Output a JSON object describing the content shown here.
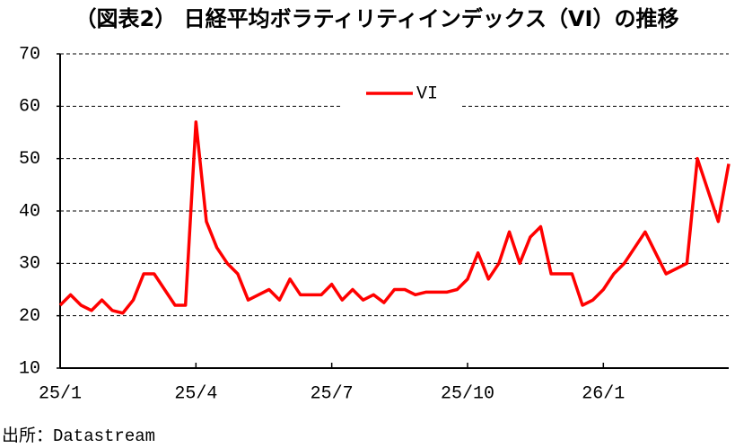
{
  "chart_data": {
    "type": "line",
    "title": "（図表2） 日経平均ボラティリティインデックス（VI）の推移",
    "source": "出所：Datastream",
    "categories": [
      "25/1",
      null,
      null,
      null,
      null,
      null,
      null,
      null,
      null,
      null,
      null,
      null,
      null,
      "25/4",
      null,
      null,
      null,
      null,
      null,
      null,
      null,
      null,
      null,
      null,
      null,
      null,
      "25/7",
      null,
      null,
      null,
      null,
      null,
      null,
      null,
      null,
      null,
      null,
      null,
      null,
      "25/10",
      null,
      null,
      null,
      null,
      null,
      null,
      null,
      null,
      null,
      null,
      null,
      null,
      "26/1",
      null,
      null,
      null,
      null,
      null,
      null,
      null,
      null,
      null,
      null,
      null,
      null
    ],
    "series": [
      {
        "name": "VI",
        "color": "#ff0000",
        "values": [
          22,
          24,
          22,
          21,
          23,
          21,
          20.5,
          23,
          28,
          28,
          25,
          22,
          22,
          57,
          38,
          33,
          30,
          28,
          23,
          24,
          25,
          23,
          27,
          24,
          24,
          24,
          26,
          23,
          25,
          23,
          24,
          22.5,
          25,
          25,
          24,
          24.5,
          24.5,
          24.5,
          25,
          27,
          32,
          27,
          30,
          36,
          30,
          35,
          37,
          28,
          28,
          28,
          22,
          23,
          25,
          28,
          30,
          33,
          36,
          32,
          28,
          29,
          30,
          50,
          44,
          38,
          49
        ]
      }
    ],
    "ylim": [
      10,
      70
    ],
    "yticks": [
      10,
      20,
      30,
      40,
      50,
      60,
      70
    ],
    "grid": true
  }
}
